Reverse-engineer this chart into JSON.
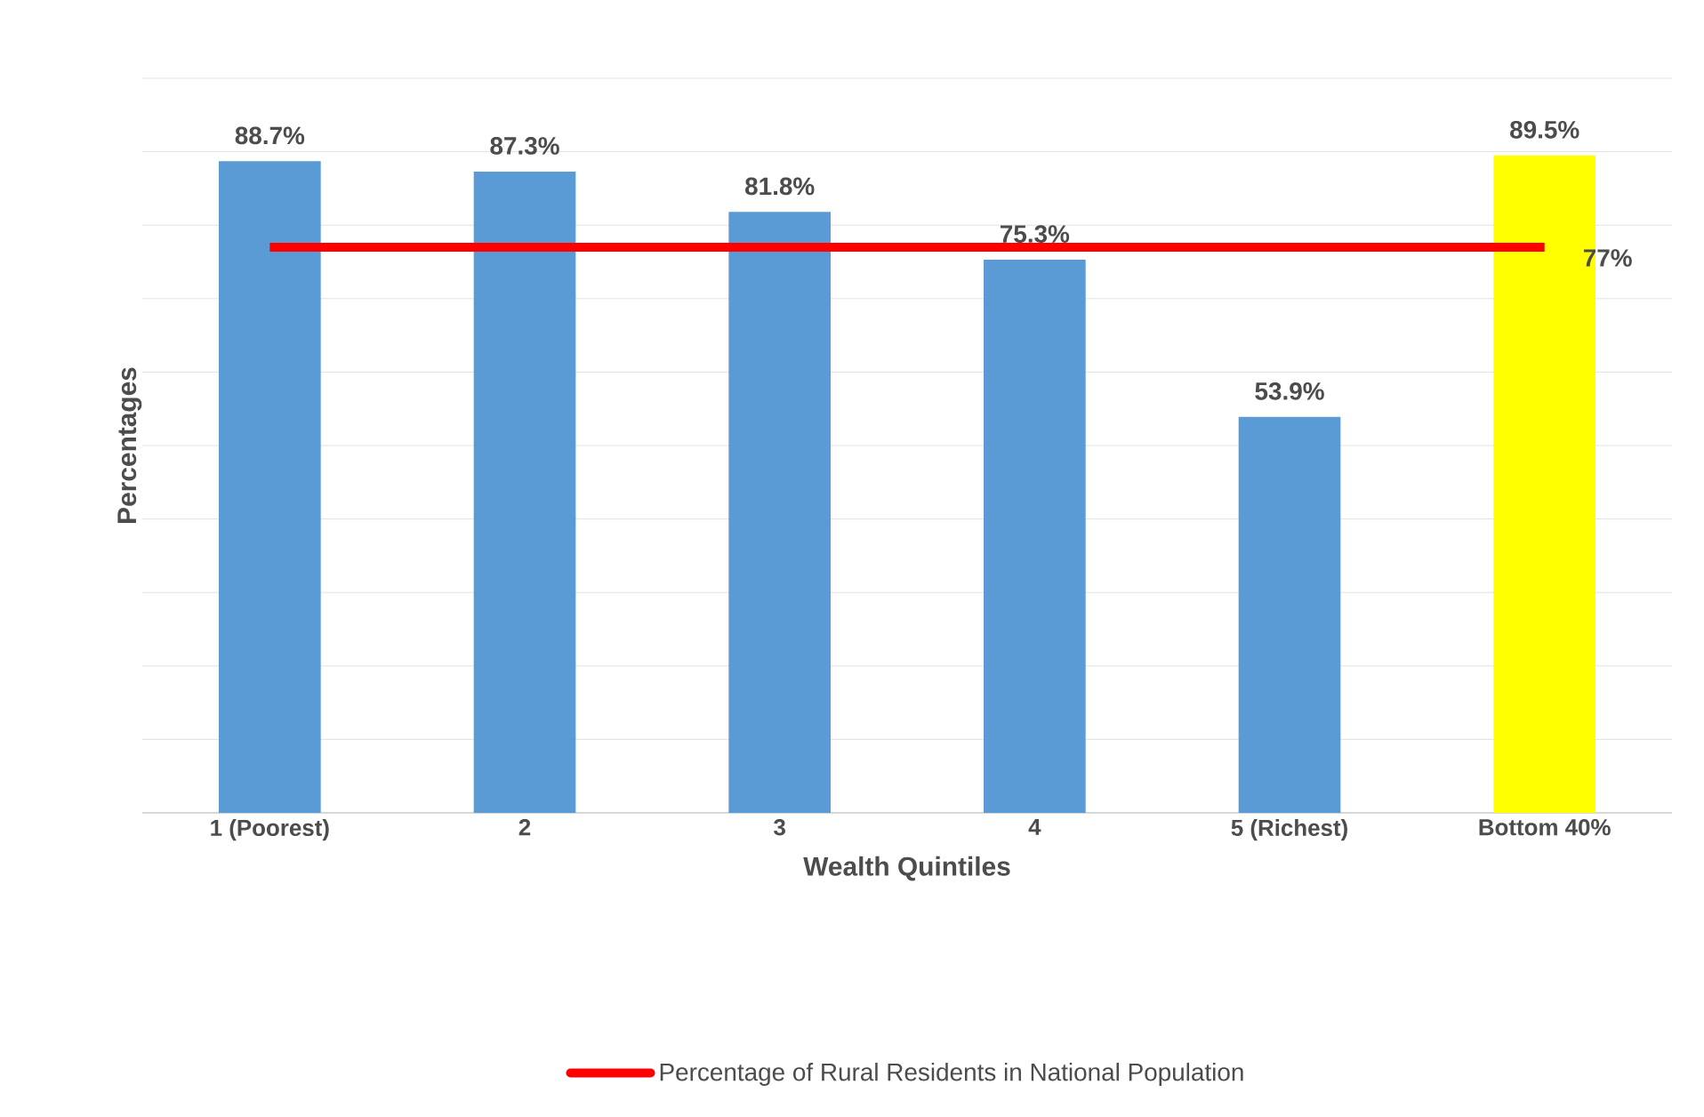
{
  "chart_data": {
    "type": "bar",
    "xlabel": "Wealth Quintiles",
    "ylabel": "Percentages",
    "categories": [
      "1 (Poorest)",
      "2",
      "3",
      "4",
      "5 (Richest)",
      "Bottom 40%"
    ],
    "series": [
      {
        "colors": [
          "#5b9bd5",
          "#5b9bd5",
          "#5b9bd5",
          "#5b9bd5",
          "#5b9bd5",
          "#ffff00"
        ],
        "values": [
          88.7,
          87.3,
          81.8,
          75.3,
          53.9,
          89.5
        ],
        "value_labels": [
          "88.7%",
          "87.3%",
          "81.8%",
          "75.3%",
          "53.9%",
          "89.5%"
        ]
      },
      {
        "type": "line",
        "name": "Percentage of Rural Residents in National Population",
        "color": "#ff0000",
        "values": [
          77,
          77,
          77,
          77,
          77,
          77
        ],
        "value_labels": [
          null,
          null,
          null,
          null,
          null,
          "77%"
        ]
      }
    ],
    "ylim": [
      0,
      100
    ],
    "yticks": [
      {
        "value": 0,
        "label": null
      },
      {
        "value": 10,
        "label": null
      },
      {
        "value": 20,
        "label": null
      },
      {
        "value": 30,
        "label": null
      },
      {
        "value": 40,
        "label": null
      },
      {
        "value": 50,
        "label": null
      },
      {
        "value": 60,
        "label": null
      },
      {
        "value": 70,
        "label": null
      },
      {
        "value": 80,
        "label": null
      },
      {
        "value": 90,
        "label": null
      },
      {
        "value": 100,
        "label": null
      }
    ],
    "grid": "y",
    "tick_labels": "x",
    "legend": "bottom"
  }
}
